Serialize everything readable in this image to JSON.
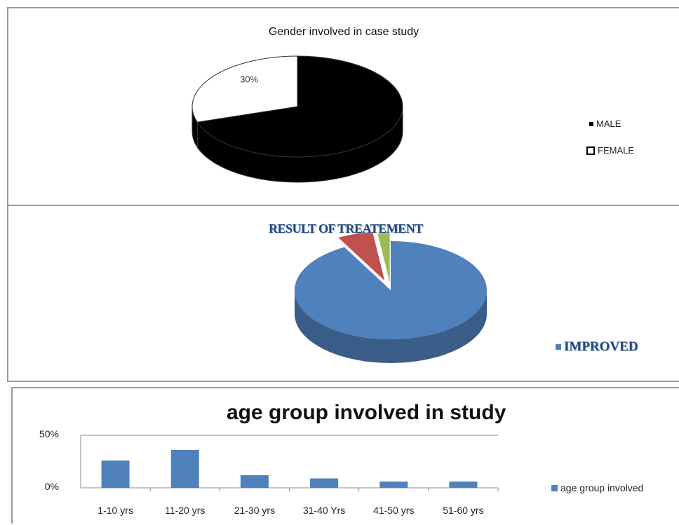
{
  "charts": [
    {
      "title": "Gender involved in case study",
      "slice_label": "30%",
      "legend": [
        {
          "label": "MALE",
          "color": "#000000"
        },
        {
          "label": "FEMALE",
          "color": "#ffffff"
        }
      ]
    },
    {
      "title": "RESULT OF TREATEMENT",
      "legend": [
        {
          "label": "IMPROVED",
          "color": "#4f81bd"
        }
      ]
    },
    {
      "title": "age group involved in study",
      "legend": [
        {
          "label": "age group involved",
          "color": "#4f81bd"
        }
      ],
      "y_ticks": [
        "50%",
        "0%"
      ]
    }
  ],
  "chart_data": [
    {
      "type": "pie",
      "title": "Gender involved in case study",
      "categories": [
        "MALE",
        "FEMALE"
      ],
      "values": [
        70,
        30
      ],
      "data_labels": [
        "",
        "30%"
      ],
      "colors": [
        "#000000",
        "#ffffff"
      ],
      "style": "3d",
      "legend_position": "right"
    },
    {
      "type": "pie",
      "title": "RESULT OF TREATEMENT",
      "categories": [
        "IMPROVED",
        "",
        ""
      ],
      "values": [
        92,
        6,
        2
      ],
      "colors": [
        "#4f81bd",
        "#c0504d",
        "#9bbb59"
      ],
      "style": "3d-exploded",
      "legend_position": "bottom-right"
    },
    {
      "type": "bar",
      "title": "age group involved in study",
      "categories": [
        "1-10 yrs",
        "11-20 yrs",
        "21-30 yrs",
        "31-40 Yrs",
        "41-50 yrs",
        "51-60 yrs"
      ],
      "series": [
        {
          "name": "age group involved",
          "values": [
            26,
            36,
            12,
            9,
            6,
            6
          ]
        }
      ],
      "ylim": [
        0,
        50
      ],
      "y_unit": "%",
      "grid": true,
      "legend_position": "right"
    }
  ]
}
